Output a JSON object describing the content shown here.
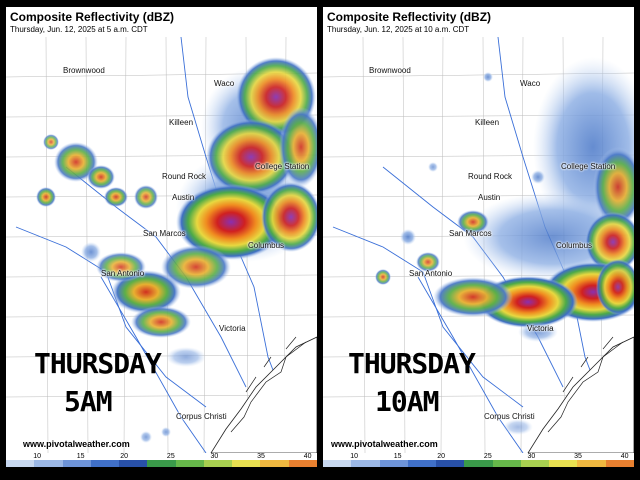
{
  "left_panel": {
    "title": "Composite Reflectivity (dBZ)",
    "subtitle": "Thursday, Jun. 12, 2025 at 5 a.m. CDT",
    "overlay_line1": "THURSDAY",
    "overlay_line2": "5AM",
    "credit": "www.pivotalweather.com",
    "cities": [
      "Brownwood",
      "Waco",
      "Killeen",
      "College Station",
      "Round Rock",
      "Austin",
      "San Marcos",
      "Columbus",
      "San Antonio",
      "Victoria",
      "Corpus Christi"
    ]
  },
  "right_panel": {
    "title": "Composite Reflectivity (dBZ)",
    "subtitle": "Thursday, Jun. 12, 2025 at 10 a.m. CDT",
    "overlay_line1": "THURSDAY",
    "overlay_line2": "10AM",
    "credit": "www.pivotalweather.com",
    "cities": [
      "Brownwood",
      "Waco",
      "Killeen",
      "College Station",
      "Round Rock",
      "Austin",
      "San Marcos",
      "Columbus",
      "San Antonio",
      "Victoria",
      "Corpus Christi"
    ]
  },
  "color_scale": {
    "ticks": [
      "10",
      "15",
      "20",
      "25",
      "30",
      "35",
      "40"
    ],
    "colors": [
      "#c8d8f0",
      "#9cb8e6",
      "#6e94d8",
      "#4070c8",
      "#2850a8",
      "#3a9a4a",
      "#66b84a",
      "#a8d050",
      "#e8e050",
      "#f0b840",
      "#e88030"
    ]
  }
}
